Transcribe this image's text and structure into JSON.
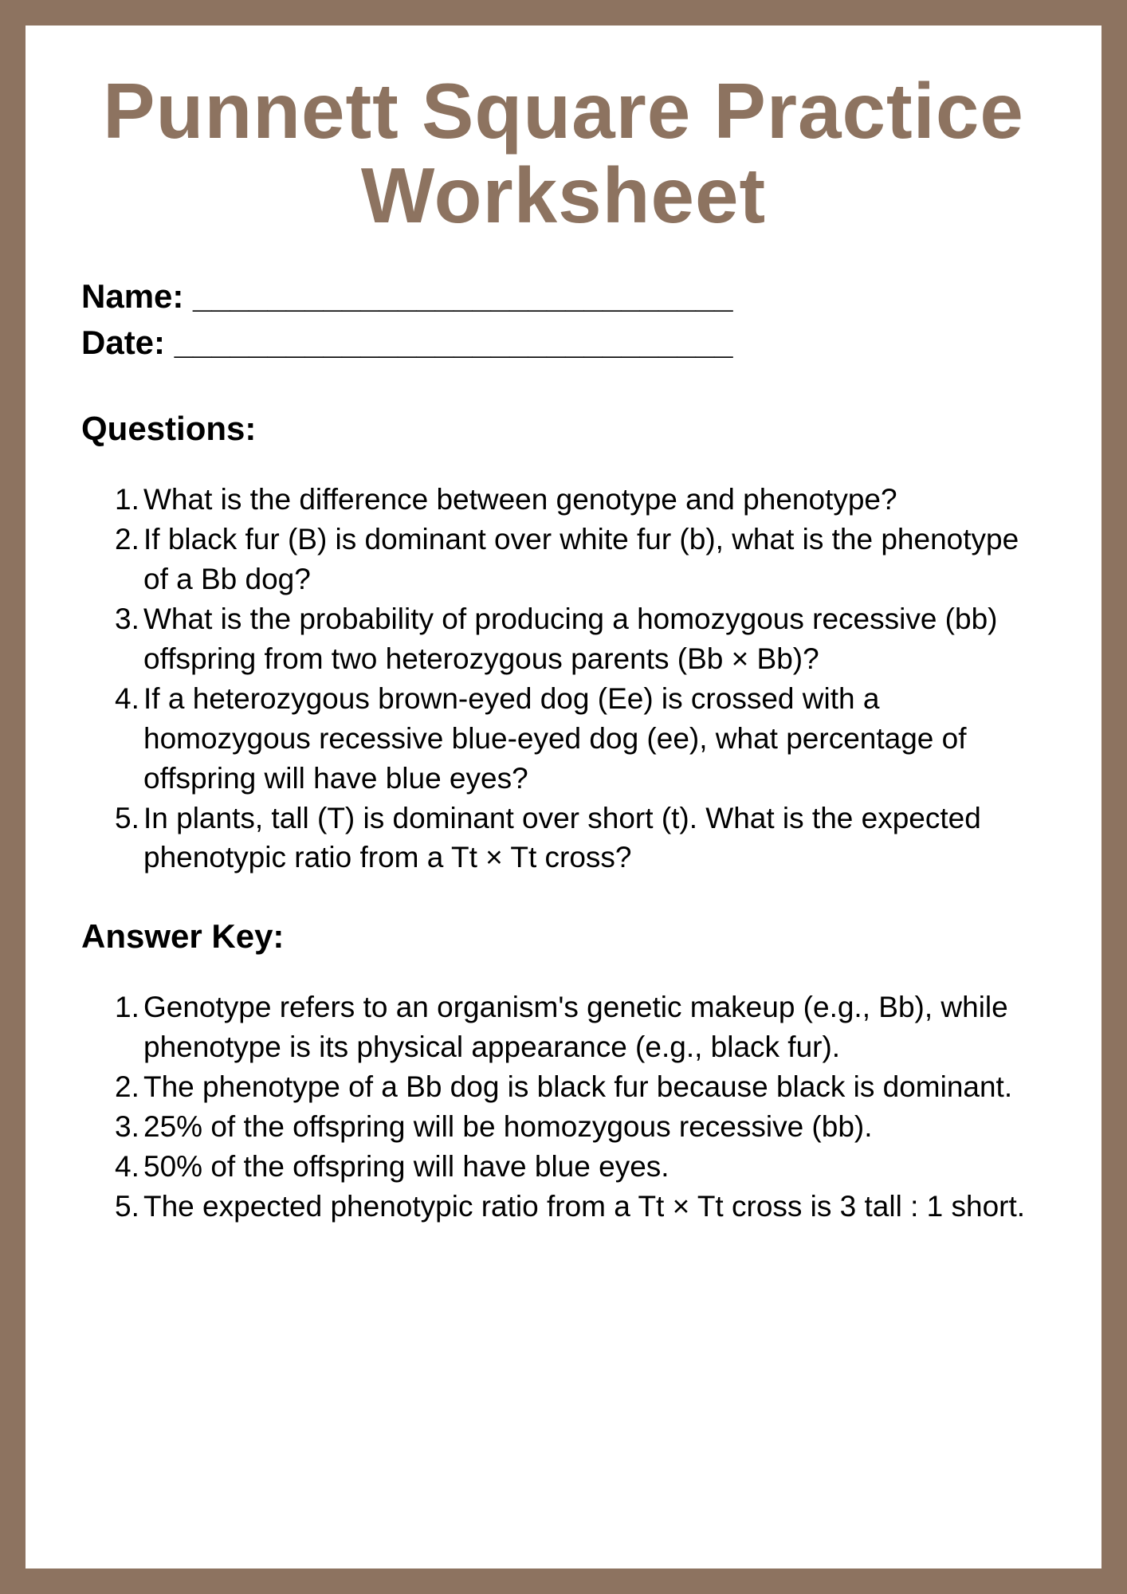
{
  "title": "Punnett Square Practice Worksheet",
  "fields": {
    "name_label": "Name: _____________________________",
    "date_label": "Date: ______________________________"
  },
  "questions_header": "Questions:",
  "questions": [
    "What is the difference between genotype and phenotype?",
    "If black fur (B) is dominant over white fur (b), what is the phenotype of a Bb dog?",
    "What is the probability of producing a homozygous recessive (bb) offspring from two heterozygous parents (Bb × Bb)?",
    "If a heterozygous brown-eyed dog (Ee) is crossed with a homozygous recessive blue-eyed dog (ee), what percentage of offspring will have blue eyes?",
    "In plants, tall (T) is dominant over short (t). What is the expected phenotypic ratio from a Tt × Tt cross?"
  ],
  "answers_header": "Answer Key:",
  "answers": [
    "Genotype refers to an organism's genetic makeup (e.g., Bb), while phenotype is its physical appearance (e.g., black fur).",
    "The phenotype of a Bb dog is black fur because black is dominant.",
    "25% of the offspring will be homozygous recessive (bb).",
    "50% of the offspring will have blue eyes.",
    "The expected phenotypic ratio from a Tt × Tt cross is 3 tall : 1 short."
  ],
  "colors": {
    "border": "#8d7360",
    "title": "#8d7360",
    "text": "#000000",
    "background": "#ffffff"
  }
}
